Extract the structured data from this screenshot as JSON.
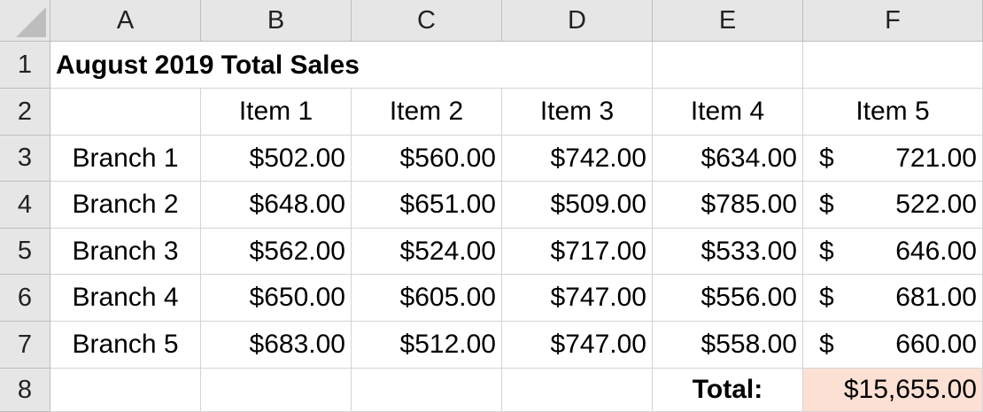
{
  "columns": [
    "A",
    "B",
    "C",
    "D",
    "E",
    "F"
  ],
  "rows": [
    "1",
    "2",
    "3",
    "4",
    "5",
    "6",
    "7",
    "8"
  ],
  "title": "August 2019 Total Sales",
  "items": [
    "Item 1",
    "Item 2",
    "Item 3",
    "Item 4",
    "Item 5"
  ],
  "branches": [
    {
      "name": "Branch 1",
      "values": [
        "$502.00",
        "$560.00",
        "$742.00",
        "$634.00"
      ],
      "item5": "721.00"
    },
    {
      "name": "Branch 2",
      "values": [
        "$648.00",
        "$651.00",
        "$509.00",
        "$785.00"
      ],
      "item5": "522.00"
    },
    {
      "name": "Branch 3",
      "values": [
        "$562.00",
        "$524.00",
        "$717.00",
        "$533.00"
      ],
      "item5": "646.00"
    },
    {
      "name": "Branch 4",
      "values": [
        "$650.00",
        "$605.00",
        "$747.00",
        "$556.00"
      ],
      "item5": "681.00"
    },
    {
      "name": "Branch 5",
      "values": [
        "$683.00",
        "$512.00",
        "$747.00",
        "$558.00"
      ],
      "item5": "660.00"
    }
  ],
  "currency_symbol": "$",
  "total_label": "Total:",
  "total_value": "$15,655.00",
  "highlight_color": "#fbe0d3"
}
